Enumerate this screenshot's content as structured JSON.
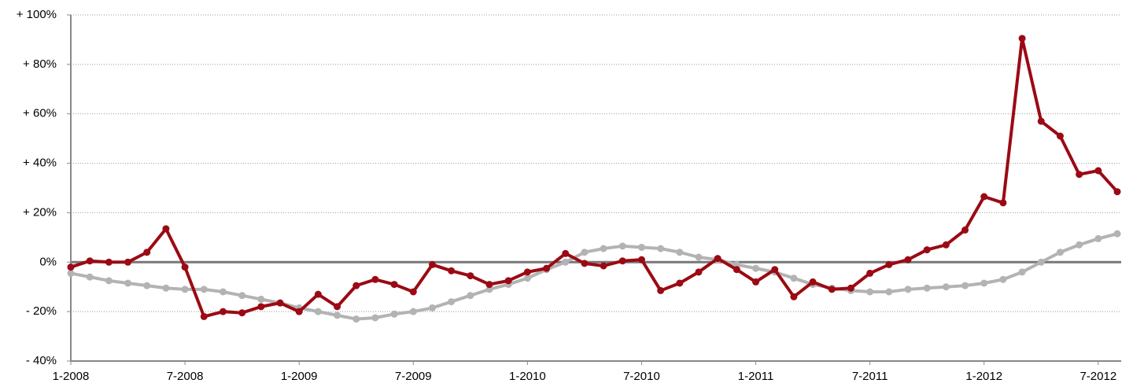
{
  "chart_data": {
    "type": "line",
    "categories": [
      "1-2008",
      null,
      null,
      null,
      null,
      null,
      "7-2008",
      null,
      null,
      null,
      null,
      null,
      "1-2009",
      null,
      null,
      null,
      null,
      null,
      "7-2009",
      null,
      null,
      null,
      null,
      null,
      "1-2010",
      null,
      null,
      null,
      null,
      null,
      "7-2010",
      null,
      null,
      null,
      null,
      null,
      "1-2011",
      null,
      null,
      null,
      null,
      null,
      "7-2011",
      null,
      null,
      null,
      null,
      null,
      "1-2012",
      null,
      null,
      null,
      null,
      null,
      "7-2012",
      null
    ],
    "series": [
      {
        "color": "#b3b3b3",
        "values": [
          -4.5,
          -6,
          -7.5,
          -8.5,
          -9.5,
          -10.5,
          -11,
          -11,
          -12,
          -13.5,
          -15,
          -16.5,
          -18.5,
          -20,
          -21.5,
          -23,
          -22.5,
          -21,
          -20,
          -18.5,
          -16,
          -13.5,
          -11,
          -9,
          -6.5,
          -3,
          0,
          4,
          5.5,
          6.5,
          6,
          5.5,
          4,
          2,
          1,
          -1,
          -2.5,
          -4,
          -6.5,
          -9,
          -10.5,
          -11.5,
          -12,
          -12,
          -11,
          -10.5,
          -10,
          -9.5,
          -8.5,
          -7,
          -4,
          0,
          4,
          7,
          9.5,
          11.5
        ]
      },
      {
        "color": "#9b0a14",
        "values": [
          -2,
          0.5,
          0,
          0,
          4,
          13.5,
          -2,
          -22,
          -20,
          -20.5,
          -18,
          -16.5,
          -20,
          -13,
          -18,
          -9.5,
          -7,
          -9,
          -12,
          -1,
          -3.5,
          -5.5,
          -9,
          -7.5,
          -4,
          -2.5,
          3.5,
          -0.5,
          -1.5,
          0.5,
          1,
          -11.5,
          -8.5,
          -4,
          1.5,
          -3,
          -8,
          -3,
          -14,
          -8,
          -11,
          -10.5,
          -4.5,
          -1,
          1,
          5,
          7,
          13,
          26.5,
          24,
          90.5,
          57,
          51,
          35.5,
          37,
          28.5
        ]
      }
    ],
    "ylim": [
      -40,
      100
    ],
    "yticks": [
      {
        "value": -40,
        "label": "- 40%"
      },
      {
        "value": -20,
        "label": "- 20%"
      },
      {
        "value": 0,
        "label": "0%"
      },
      {
        "value": 20,
        "label": "+ 20%"
      },
      {
        "value": 40,
        "label": "+ 40%"
      },
      {
        "value": 60,
        "label": "+ 60%"
      },
      {
        "value": 80,
        "label": "+ 80%"
      },
      {
        "value": 100,
        "label": "+ 100%"
      }
    ],
    "grid": true
  }
}
